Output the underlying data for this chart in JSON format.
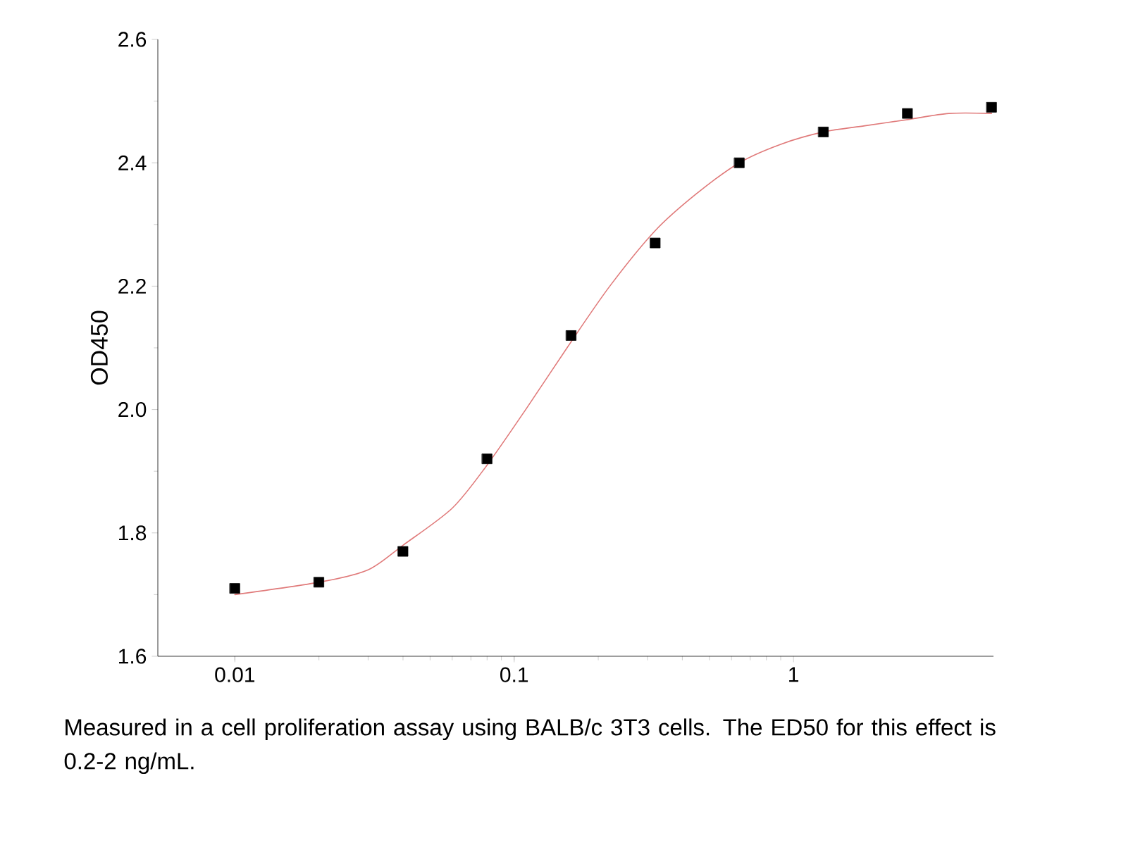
{
  "chart_data": {
    "type": "scatter",
    "ylabel": "OD450",
    "log": "x",
    "xlim": [
      0.0053,
      5.2
    ],
    "ylim": [
      1.6,
      2.6
    ],
    "xticks": [
      {
        "value": 0.01,
        "label": "0.01"
      },
      {
        "value": 0.1,
        "label": "0.1"
      },
      {
        "value": 1,
        "label": "1"
      }
    ],
    "yticks": [
      {
        "value": 1.6,
        "label": "1.6"
      },
      {
        "value": 1.8,
        "label": "1.8"
      },
      {
        "value": 2.0,
        "label": "2.0"
      },
      {
        "value": 2.2,
        "label": "2.2"
      },
      {
        "value": 2.4,
        "label": "2.4"
      },
      {
        "value": 2.6,
        "label": "2.6"
      }
    ],
    "grid": false,
    "series": [
      {
        "type": "line",
        "color": "#e07a7a",
        "marker": "none",
        "line_style": "solid",
        "x": [
          0.01,
          0.02,
          0.03,
          0.04,
          0.06,
          0.08,
          0.11,
          0.16,
          0.22,
          0.32,
          0.45,
          0.64,
          0.9,
          1.28,
          1.8,
          2.56,
          3.6,
          5.12
        ],
        "values": [
          1.7,
          1.72,
          1.74,
          1.78,
          1.84,
          1.91,
          2.0,
          2.11,
          2.2,
          2.29,
          2.35,
          2.4,
          2.43,
          2.45,
          2.46,
          2.47,
          2.48,
          2.48
        ]
      },
      {
        "color": "#000000",
        "marker": "square",
        "x": [
          0.01,
          0.02,
          0.04,
          0.08,
          0.16,
          0.32,
          0.64,
          1.28,
          2.56,
          5.12
        ],
        "values": [
          1.71,
          1.72,
          1.77,
          1.92,
          2.12,
          2.27,
          2.4,
          2.45,
          2.48,
          2.49
        ]
      }
    ],
    "annotations": [
      "Measured in a cell proliferation assay using BALB/c 3T3 cells. The ED50 for this effect is 0.2-2 ng/mL."
    ]
  }
}
